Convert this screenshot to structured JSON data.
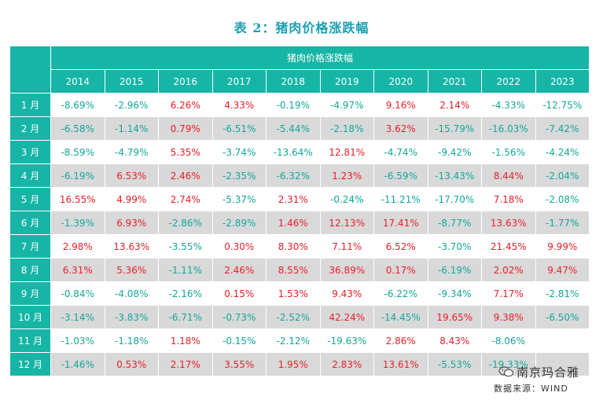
{
  "title": "表 2：猪肉价格涨跌幅",
  "super_header": "猪肉价格涨跌幅",
  "years": [
    "2014",
    "2015",
    "2016",
    "2017",
    "2018",
    "2019",
    "2020",
    "2021",
    "2022",
    "2023"
  ],
  "rows": [
    {
      "month": "1 月",
      "values": [
        "-8.69%",
        "-2.96%",
        "6.26%",
        "4.33%",
        "-0.19%",
        "-4.97%",
        "9.16%",
        "2.14%",
        "-4.33%",
        "-12.75%"
      ]
    },
    {
      "month": "2 月",
      "values": [
        "-6.58%",
        "-1.14%",
        "0.79%",
        "-6.51%",
        "-5.44%",
        "-2.18%",
        "3.62%",
        "-15.79%",
        "-16.03%",
        "-7.42%"
      ]
    },
    {
      "month": "3 月",
      "values": [
        "-8.59%",
        "-4.79%",
        "5.35%",
        "-3.74%",
        "-13.64%",
        "12.81%",
        "-4.74%",
        "-9.42%",
        "-1.56%",
        "-4.24%"
      ]
    },
    {
      "month": "4 月",
      "values": [
        "-6.19%",
        "6.53%",
        "2.46%",
        "-2.35%",
        "-6.32%",
        "1.23%",
        "-6.59%",
        "-13.43%",
        "8.44%",
        "-2.04%"
      ]
    },
    {
      "month": "5 月",
      "values": [
        "16.55%",
        "4.99%",
        "2.74%",
        "-5.37%",
        "2.31%",
        "-0.24%",
        "-11.21%",
        "-17.70%",
        "7.18%",
        "-2.08%"
      ]
    },
    {
      "month": "6 月",
      "values": [
        "-1.39%",
        "6.93%",
        "-2.86%",
        "-2.89%",
        "1.46%",
        "12.13%",
        "17.41%",
        "-8.77%",
        "13.63%",
        "-1.77%"
      ]
    },
    {
      "month": "7 月",
      "values": [
        "2.98%",
        "13.63%",
        "-3.55%",
        "0.30%",
        "8.30%",
        "7.11%",
        "6.52%",
        "-3.70%",
        "21.45%",
        "9.99%"
      ]
    },
    {
      "month": "8 月",
      "values": [
        "6.31%",
        "5.36%",
        "-1.11%",
        "2.46%",
        "8.55%",
        "36.89%",
        "0.17%",
        "-6.19%",
        "2.02%",
        "9.47%"
      ]
    },
    {
      "month": "9 月",
      "values": [
        "-0.84%",
        "-4.08%",
        "-2.16%",
        "0.15%",
        "1.53%",
        "9.43%",
        "-6.22%",
        "-9.34%",
        "7.17%",
        "-2.81%"
      ]
    },
    {
      "month": "10 月",
      "values": [
        "-3.14%",
        "-3.83%",
        "-6.71%",
        "-0.73%",
        "-2.52%",
        "42.24%",
        "-14.45%",
        "19.65%",
        "9.38%",
        "-6.50%"
      ]
    },
    {
      "month": "11 月",
      "values": [
        "-1.03%",
        "-1.18%",
        "1.18%",
        "-0.15%",
        "-2.12%",
        "-19.63%",
        "2.86%",
        "8.43%",
        "-8.06%",
        ""
      ]
    },
    {
      "month": "12 月",
      "values": [
        "-1.46%",
        "0.53%",
        "2.17%",
        "3.55%",
        "1.95%",
        "2.83%",
        "13.61%",
        "-5.53%",
        "-19.33%",
        ""
      ]
    }
  ],
  "watermark": "南京玛合雅",
  "source": "数据来源：WIND",
  "colors": {
    "header_bg": "#16b5a6",
    "stripe": "#d9d9d9",
    "positive": "#e8202a",
    "negative": "#11a89c",
    "title": "#1a9fb3"
  },
  "icons": {
    "watermark": "wechat-icon"
  }
}
